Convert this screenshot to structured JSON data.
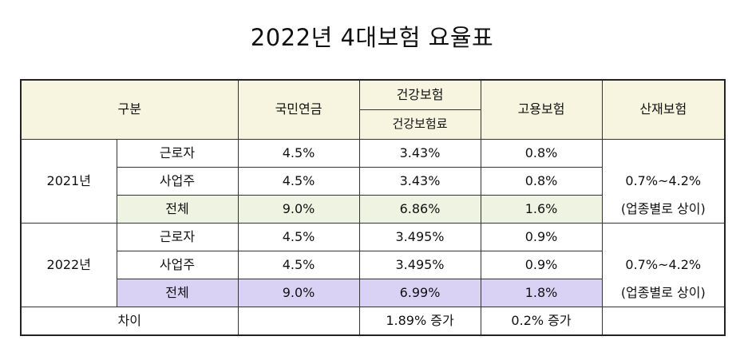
{
  "title": "2022년 4대보험 요율표",
  "header": {
    "category": "구분",
    "pension": "국민연금",
    "health_group": "건강보험",
    "health_sub": "건강보험료",
    "employment": "고용보험",
    "industrial": "산재보험"
  },
  "years": [
    {
      "label": "2021년",
      "rows": [
        {
          "role": "근로자",
          "pension": "4.5%",
          "health": "3.43%",
          "employment": "0.8%"
        },
        {
          "role": "사업주",
          "pension": "4.5%",
          "health": "3.43%",
          "employment": "0.8%"
        },
        {
          "role": "전체",
          "pension": "9.0%",
          "health": "6.86%",
          "employment": "1.6%"
        }
      ],
      "industrial_line1": "0.7%~4.2%",
      "industrial_line2": "(업종별로 상이)"
    },
    {
      "label": "2022년",
      "rows": [
        {
          "role": "근로자",
          "pension": "4.5%",
          "health": "3.495%",
          "employment": "0.9%"
        },
        {
          "role": "사업주",
          "pension": "4.5%",
          "health": "3.495%",
          "employment": "0.9%"
        },
        {
          "role": "전체",
          "pension": "9.0%",
          "health": "6.99%",
          "employment": "1.8%"
        }
      ],
      "industrial_line1": "0.7%~4.2%",
      "industrial_line2": "(업종별로 상이)"
    }
  ],
  "difference": {
    "label": "차이",
    "pension": "",
    "health": "1.89% 증가",
    "employment": "0.2% 증가",
    "industrial": ""
  },
  "colors": {
    "header_bg": "#f7f5df",
    "total_2021_bg": "#eef3e2",
    "total_2022_bg": "#d9d2f5"
  }
}
